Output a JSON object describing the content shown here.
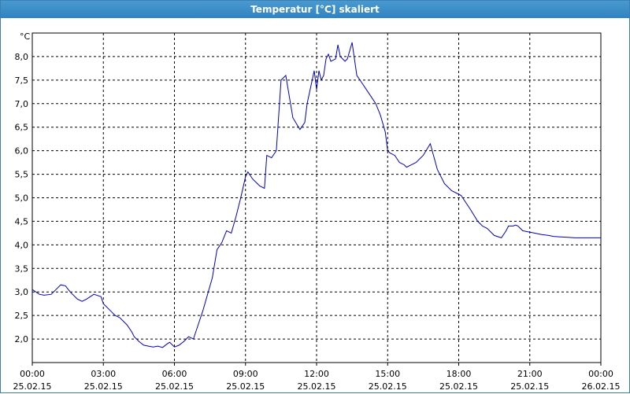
{
  "window": {
    "title": "Temperatur [°C] skaliert"
  },
  "chart_data": {
    "type": "line",
    "title": "Temperatur [°C] skaliert",
    "ylabel": "°C",
    "xlabel": "",
    "ylim": [
      1.5,
      8.5
    ],
    "xlim": [
      0,
      24
    ],
    "grid": true,
    "y_ticks": [
      "2,0",
      "2,5",
      "3,0",
      "3,5",
      "4,0",
      "4,5",
      "5,0",
      "5,5",
      "6,0",
      "6,5",
      "7,0",
      "7,5",
      "8,0"
    ],
    "x_ticks": [
      {
        "time": "00:00",
        "date": "25.02.15"
      },
      {
        "time": "03:00",
        "date": "25.02.15"
      },
      {
        "time": "06:00",
        "date": "25.02.15"
      },
      {
        "time": "09:00",
        "date": "25.02.15"
      },
      {
        "time": "12:00",
        "date": "25.02.15"
      },
      {
        "time": "15:00",
        "date": "25.02.15"
      },
      {
        "time": "18:00",
        "date": "25.02.15"
      },
      {
        "time": "21:00",
        "date": "25.02.15"
      },
      {
        "time": "00:00",
        "date": "26.02.15"
      }
    ],
    "line_color": "#0000c0",
    "series": [
      {
        "x": [
          0.0,
          0.3,
          0.5,
          0.8,
          1.0,
          1.2,
          1.4,
          1.6,
          1.9,
          2.1,
          2.3,
          2.6,
          2.9,
          3.0,
          3.2,
          3.4,
          3.5,
          3.7,
          4.0,
          4.2,
          4.3,
          4.5,
          4.7,
          4.9,
          5.1,
          5.3,
          5.5,
          5.7,
          5.8,
          6.0,
          6.2,
          6.4,
          6.6,
          6.8,
          7.0,
          7.2,
          7.4,
          7.6,
          7.8,
          8.0,
          8.2,
          8.4,
          8.6,
          8.8,
          9.0,
          9.1,
          9.3,
          9.5,
          9.6,
          9.8,
          9.9,
          10.1,
          10.3,
          10.5,
          10.7,
          11.0,
          11.3,
          11.5,
          11.6,
          11.9,
          12.0,
          12.1,
          12.2,
          12.3,
          12.4,
          12.5,
          12.6,
          12.8,
          12.9,
          13.0,
          13.2,
          13.3,
          13.5,
          13.7,
          13.9,
          14.1,
          14.3,
          14.5,
          14.7,
          14.9,
          15.0,
          15.1,
          15.3,
          15.5,
          15.7,
          15.8,
          16.0,
          16.2,
          16.5,
          16.8,
          17.1,
          17.4,
          17.7,
          17.9,
          18.1,
          18.3,
          18.5,
          18.8,
          19.0,
          19.2,
          19.5,
          19.8,
          20.0,
          20.1,
          20.3,
          20.4,
          20.5,
          20.6,
          20.7,
          20.9,
          21.2,
          21.5,
          21.8,
          22.0,
          22.3,
          22.6,
          22.9,
          23.2,
          23.6,
          24.0
        ],
        "y": [
          3.05,
          2.95,
          2.93,
          2.95,
          3.05,
          3.15,
          3.13,
          3.0,
          2.85,
          2.8,
          2.85,
          2.95,
          2.9,
          2.75,
          2.65,
          2.55,
          2.5,
          2.45,
          2.3,
          2.15,
          2.05,
          1.95,
          1.87,
          1.85,
          1.83,
          1.85,
          1.82,
          1.9,
          1.93,
          1.83,
          1.87,
          1.95,
          2.05,
          2.0,
          2.3,
          2.6,
          2.95,
          3.3,
          3.9,
          4.05,
          4.3,
          4.25,
          4.6,
          5.0,
          5.45,
          5.55,
          5.4,
          5.3,
          5.25,
          5.2,
          5.9,
          5.85,
          6.0,
          7.5,
          7.6,
          6.7,
          6.45,
          6.6,
          7.0,
          7.7,
          7.3,
          7.7,
          7.5,
          7.6,
          7.95,
          8.05,
          7.9,
          7.95,
          8.25,
          8.0,
          7.9,
          7.95,
          8.3,
          7.6,
          7.45,
          7.3,
          7.15,
          7.0,
          6.75,
          6.4,
          6.0,
          5.95,
          5.9,
          5.75,
          5.7,
          5.65,
          5.7,
          5.75,
          5.9,
          6.15,
          5.6,
          5.3,
          5.15,
          5.1,
          5.05,
          4.9,
          4.75,
          4.5,
          4.4,
          4.35,
          4.2,
          4.15,
          4.3,
          4.4,
          4.4,
          4.42,
          4.4,
          4.35,
          4.3,
          4.28,
          4.25,
          4.22,
          4.2,
          4.18,
          4.17,
          4.16,
          4.15,
          4.15,
          4.15,
          4.15
        ]
      }
    ]
  }
}
